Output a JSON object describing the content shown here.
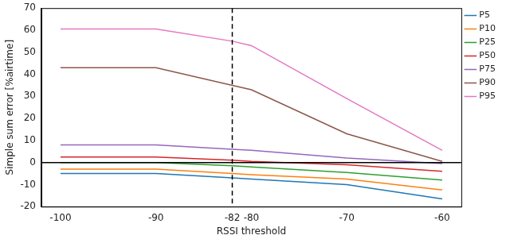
{
  "chart_data": {
    "type": "line",
    "x_label": "RSSI threshold",
    "y_label": "Simple sum error [%airtime]",
    "x": [
      -100,
      -90,
      -82,
      -80,
      -70,
      -60
    ],
    "series": [
      {
        "name": "P5",
        "color": "#1f77b4",
        "values": [
          -5,
          -5,
          -7,
          -7.5,
          -10,
          -16.5
        ]
      },
      {
        "name": "P10",
        "color": "#ff7f0e",
        "values": [
          -3,
          -3,
          -5,
          -5.5,
          -7.5,
          -12.5
        ]
      },
      {
        "name": "P25",
        "color": "#2ca02c",
        "values": [
          0,
          0,
          -1.5,
          -2,
          -4.5,
          -8
        ]
      },
      {
        "name": "P50",
        "color": "#d62728",
        "values": [
          2.5,
          2.5,
          1,
          0.5,
          -1,
          -4
        ]
      },
      {
        "name": "P75",
        "color": "#9467bd",
        "values": [
          8,
          8,
          6,
          5.5,
          2,
          -0.5
        ]
      },
      {
        "name": "P90",
        "color": "#8c564b",
        "values": [
          43,
          43,
          35,
          33,
          13,
          0.5
        ]
      },
      {
        "name": "P95",
        "color": "#e377c2",
        "values": [
          60.5,
          60.5,
          55,
          53,
          29,
          5.5
        ]
      }
    ],
    "reference_lines": [
      {
        "y": 0,
        "color": "#000000",
        "line_style": "solid"
      },
      {
        "x": -82,
        "color": "#000000",
        "line_style": "dashed"
      }
    ],
    "xlim": [
      -102,
      -58
    ],
    "xticks": [
      -100,
      -90,
      -82,
      -80,
      -70,
      -60
    ],
    "ylim": [
      -20,
      70
    ],
    "yticks": [
      -20,
      -10,
      0,
      10,
      20,
      30,
      40,
      50,
      60,
      70
    ],
    "grid": false,
    "legend": "upper right"
  }
}
